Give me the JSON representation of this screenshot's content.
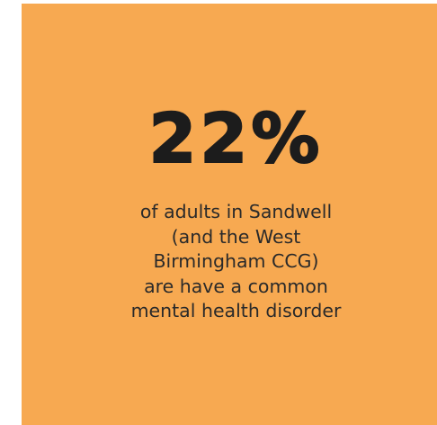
{
  "card": {
    "background": "#f7a951",
    "stat": "22%",
    "caption_lines": [
      "of adults in Sandwell",
      "(and the West",
      "Birmingham CCG)",
      "are have a common",
      "mental health disorder"
    ]
  }
}
